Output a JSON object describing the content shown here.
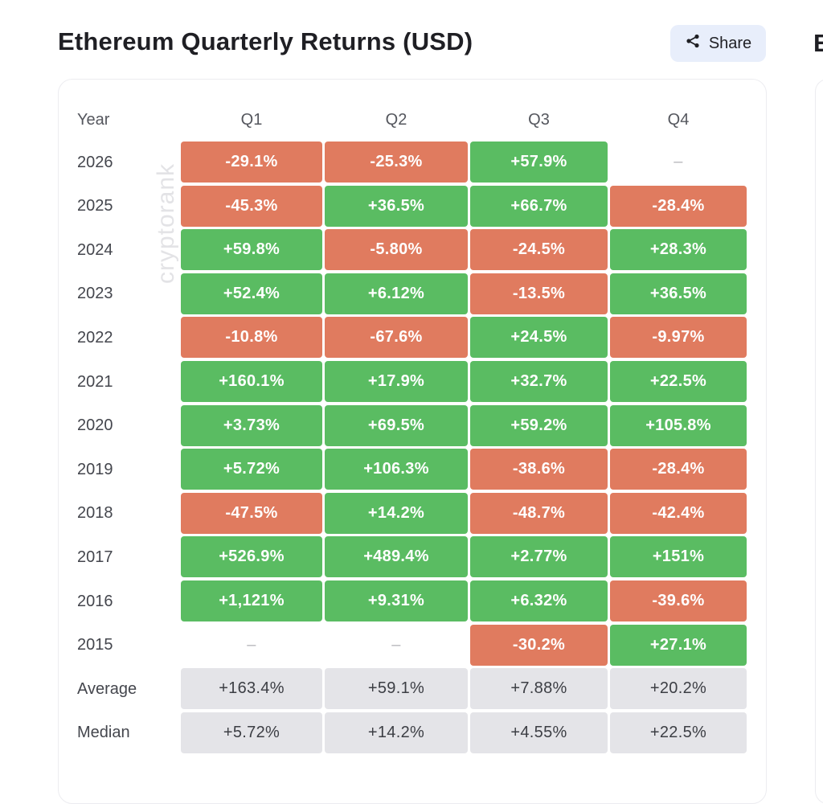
{
  "title": "Ethereum Quarterly Returns (USD)",
  "share_label": "Share",
  "share_icon": "share-icon",
  "next_card_title_fragment": "E",
  "watermark": "cryptorank",
  "colors": {
    "positive": "#5abc62",
    "negative": "#e07b5f",
    "stat": "#e4e4e8"
  },
  "chart_data": {
    "type": "table",
    "columns": [
      "Year",
      "Q1",
      "Q2",
      "Q3",
      "Q4"
    ],
    "rows": [
      {
        "label": "2026",
        "values": [
          "-29.1%",
          "-25.3%",
          "+57.9%",
          "–"
        ]
      },
      {
        "label": "2025",
        "values": [
          "-45.3%",
          "+36.5%",
          "+66.7%",
          "-28.4%"
        ]
      },
      {
        "label": "2024",
        "values": [
          "+59.8%",
          "-5.80%",
          "-24.5%",
          "+28.3%"
        ]
      },
      {
        "label": "2023",
        "values": [
          "+52.4%",
          "+6.12%",
          "-13.5%",
          "+36.5%"
        ]
      },
      {
        "label": "2022",
        "values": [
          "-10.8%",
          "-67.6%",
          "+24.5%",
          "-9.97%"
        ]
      },
      {
        "label": "2021",
        "values": [
          "+160.1%",
          "+17.9%",
          "+32.7%",
          "+22.5%"
        ]
      },
      {
        "label": "2020",
        "values": [
          "+3.73%",
          "+69.5%",
          "+59.2%",
          "+105.8%"
        ]
      },
      {
        "label": "2019",
        "values": [
          "+5.72%",
          "+106.3%",
          "-38.6%",
          "-28.4%"
        ]
      },
      {
        "label": "2018",
        "values": [
          "-47.5%",
          "+14.2%",
          "-48.7%",
          "-42.4%"
        ]
      },
      {
        "label": "2017",
        "values": [
          "+526.9%",
          "+489.4%",
          "+2.77%",
          "+151%"
        ]
      },
      {
        "label": "2016",
        "values": [
          "+1,121%",
          "+9.31%",
          "+6.32%",
          "-39.6%"
        ]
      },
      {
        "label": "2015",
        "values": [
          "–",
          "–",
          "-30.2%",
          "+27.1%"
        ]
      },
      {
        "label": "Average",
        "values": [
          "+163.4%",
          "+59.1%",
          "+7.88%",
          "+20.2%"
        ],
        "stat": true
      },
      {
        "label": "Median",
        "values": [
          "+5.72%",
          "+14.2%",
          "+4.55%",
          "+22.5%"
        ],
        "stat": true
      }
    ]
  }
}
